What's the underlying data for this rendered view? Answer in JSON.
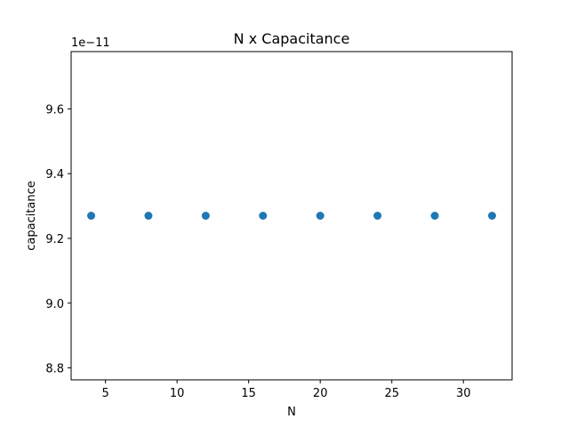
{
  "chart_data": {
    "type": "scatter",
    "title": "N x Capacitance",
    "xlabel": "N",
    "ylabel": "capacitance",
    "y_offset_label": "1e−11",
    "x": [
      4,
      8,
      12,
      16,
      20,
      24,
      28,
      32
    ],
    "y": [
      9.27,
      9.27,
      9.27,
      9.27,
      9.27,
      9.27,
      9.27,
      9.27
    ],
    "xlim": [
      2.6,
      33.4
    ],
    "ylim": [
      8.763,
      9.777
    ],
    "xticks": [
      5,
      10,
      15,
      20,
      25,
      30
    ],
    "xtick_labels": [
      "5",
      "10",
      "15",
      "20",
      "25",
      "30"
    ],
    "yticks": [
      8.8,
      9.0,
      9.2,
      9.4,
      9.6
    ],
    "ytick_labels": [
      "8.8",
      "9.0",
      "9.2",
      "9.4",
      "9.6"
    ],
    "grid": false,
    "marker_color": "#1f77b4"
  }
}
